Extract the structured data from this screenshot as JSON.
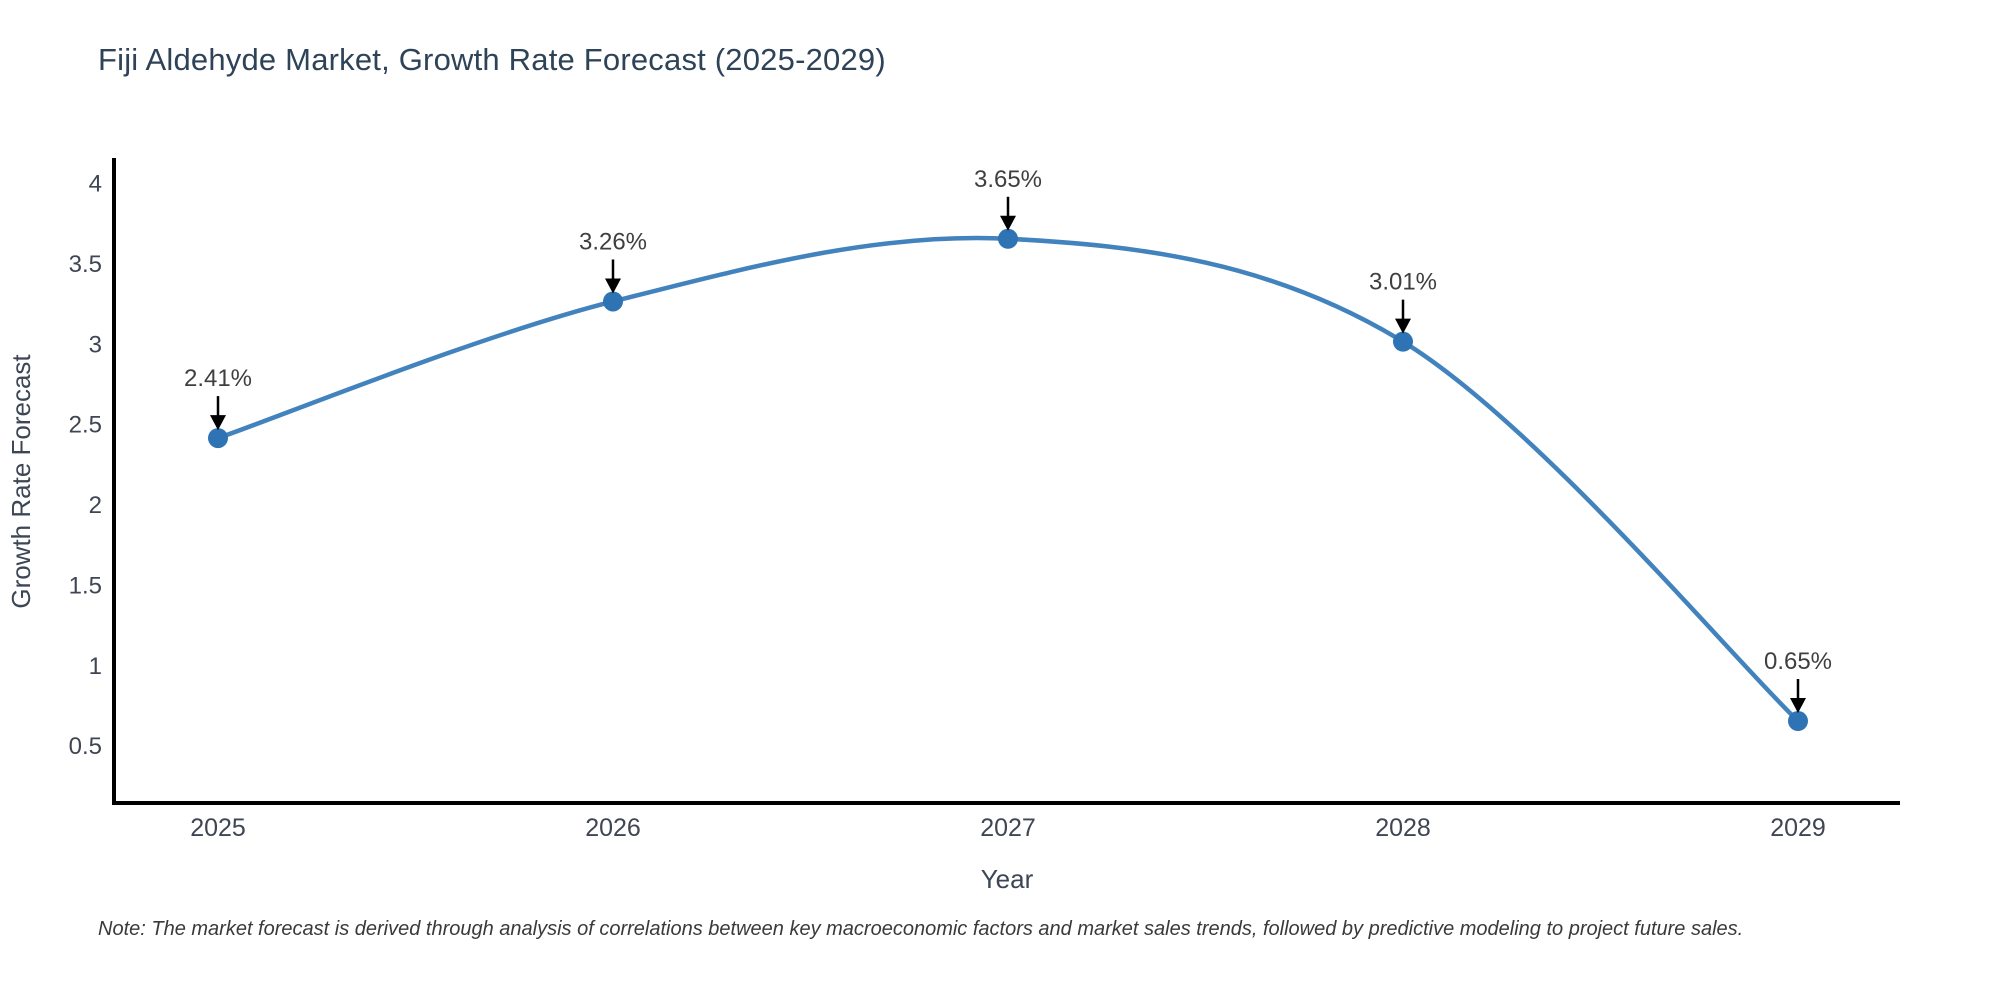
{
  "header": {
    "title": "Fiji Aldehyde Market, Growth Rate Forecast (2025-2029)"
  },
  "footnote": {
    "text": "Note: The market forecast is derived through analysis of correlations between key macroeconomic factors and market sales trends, followed by predictive modeling to project future sales."
  },
  "chart_data": {
    "type": "line",
    "title": "Fiji Aldehyde Market, Growth Rate Forecast (2025-2029)",
    "xlabel": "Year",
    "ylabel": "Growth Rate Forecast",
    "categories": [
      "2025",
      "2026",
      "2027",
      "2028",
      "2029"
    ],
    "values": [
      2.41,
      3.26,
      3.65,
      3.01,
      0.65
    ],
    "point_labels": [
      "2.41%",
      "3.26%",
      "3.65%",
      "3.01%",
      "0.65%"
    ],
    "yticks": [
      "0.5",
      "1",
      "1.5",
      "2",
      "2.5",
      "3",
      "3.5",
      "4"
    ],
    "ylim": [
      0.14,
      4.14
    ],
    "grid": false,
    "legend": "none",
    "curve": "spline",
    "colors": {
      "line": "#4283bd",
      "marker": "#2e73b4",
      "axis": "#000000",
      "tick_label": "#3f4653",
      "axis_title": "#3c4654",
      "annotation_text": "#3f3f3f",
      "arrow": "#000000",
      "title": "#2f4358",
      "background": "#ffffff"
    }
  }
}
